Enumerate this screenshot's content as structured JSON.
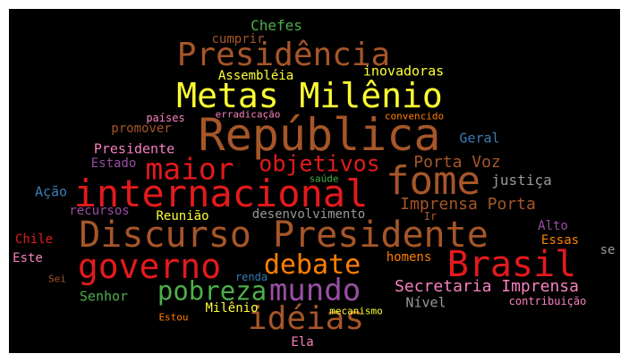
{
  "colors": {
    "background": "#000000",
    "frame": "#ffffff",
    "palette": {
      "brown": "#a65628",
      "red": "#e41a1c",
      "orange": "#ff7f00",
      "yellow": "#ffff33",
      "green": "#4daf4a",
      "purple": "#984ea3",
      "pink": "#f781bf",
      "blue": "#377eb8",
      "gray": "#999999"
    }
  },
  "words": [
    {
      "text": "República",
      "color": "brown"
    },
    {
      "text": "Discurso Presidente",
      "color": "brown"
    },
    {
      "text": "internacional",
      "color": "red"
    },
    {
      "text": "fome",
      "color": "brown"
    },
    {
      "text": "Metas Milênio",
      "color": "yellow"
    },
    {
      "text": "governo",
      "color": "red"
    },
    {
      "text": "Brasil",
      "color": "red"
    },
    {
      "text": "Presidência",
      "color": "brown"
    },
    {
      "text": "idéias",
      "color": "brown"
    },
    {
      "text": "mundo",
      "color": "purple"
    },
    {
      "text": "pobreza",
      "color": "green"
    },
    {
      "text": "maior",
      "color": "red"
    },
    {
      "text": "debate",
      "color": "orange"
    },
    {
      "text": "objetivos",
      "color": "red"
    },
    {
      "text": "Secretaria Imprensa",
      "color": "pink"
    },
    {
      "text": "Imprensa Porta",
      "color": "brown"
    },
    {
      "text": "Porta Voz",
      "color": "brown"
    },
    {
      "text": "Chefes",
      "color": "green"
    },
    {
      "text": "cumprir",
      "color": "brown"
    },
    {
      "text": "Assembléia",
      "color": "yellow"
    },
    {
      "text": "inovadoras",
      "color": "yellow"
    },
    {
      "text": "países",
      "color": "pink"
    },
    {
      "text": "erradicação",
      "color": "pink"
    },
    {
      "text": "convencido",
      "color": "orange"
    },
    {
      "text": "promover",
      "color": "brown"
    },
    {
      "text": "Geral",
      "color": "blue"
    },
    {
      "text": "Presidente",
      "color": "pink"
    },
    {
      "text": "Estado",
      "color": "purple"
    },
    {
      "text": "justiça",
      "color": "gray"
    },
    {
      "text": "Ação",
      "color": "blue"
    },
    {
      "text": "saúde",
      "color": "green"
    },
    {
      "text": "recursos",
      "color": "purple"
    },
    {
      "text": "Reunião",
      "color": "yellow"
    },
    {
      "text": "desenvolvimento",
      "color": "gray"
    },
    {
      "text": "Ir",
      "color": "brown"
    },
    {
      "text": "Alto",
      "color": "purple"
    },
    {
      "text": "Chile",
      "color": "red"
    },
    {
      "text": "Essas",
      "color": "orange"
    },
    {
      "text": "Este",
      "color": "pink"
    },
    {
      "text": "homens",
      "color": "orange"
    },
    {
      "text": "se",
      "color": "gray"
    },
    {
      "text": "Sei",
      "color": "brown"
    },
    {
      "text": "renda",
      "color": "blue"
    },
    {
      "text": "Senhor",
      "color": "green"
    },
    {
      "text": "Milênio",
      "color": "yellow"
    },
    {
      "text": "Nível",
      "color": "gray"
    },
    {
      "text": "contribuição",
      "color": "pink"
    },
    {
      "text": "Estou",
      "color": "orange"
    },
    {
      "text": "mecanismo",
      "color": "yellow"
    },
    {
      "text": "Ela",
      "color": "pink"
    }
  ]
}
